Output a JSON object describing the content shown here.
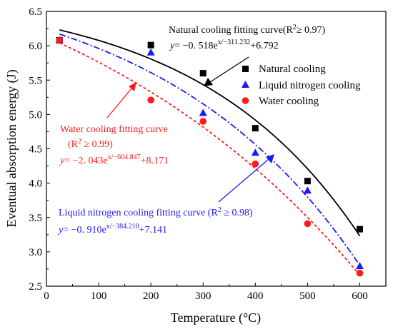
{
  "chart_data": {
    "type": "scatter",
    "xlabel": "Temperature (°C)",
    "ylabel": "Eventual absorption energy (J)",
    "xlim": [
      0,
      650
    ],
    "ylim": [
      2.5,
      6.5
    ],
    "xticks": [
      0,
      100,
      200,
      300,
      400,
      500,
      600
    ],
    "yticks": [
      2.5,
      3.0,
      3.5,
      4.0,
      4.5,
      5.0,
      5.5,
      6.0,
      6.5
    ],
    "xtick_labels": [
      "0",
      "100",
      "200",
      "300",
      "400",
      "500",
      "600"
    ],
    "ytick_labels": [
      "2.5",
      "3.0",
      "3.5",
      "4.0",
      "4.5",
      "5.0",
      "5.5",
      "6.0",
      "6.5"
    ],
    "legend_position": "top-right",
    "series": [
      {
        "name": "Natural cooling",
        "marker": "square",
        "color": "#000000",
        "x": [
          25,
          200,
          300,
          400,
          500,
          600
        ],
        "y": [
          6.08,
          6.01,
          5.6,
          4.8,
          4.03,
          3.33
        ]
      },
      {
        "name": "Liquid nitrogen cooling",
        "marker": "triangle",
        "color": "#1a1aff",
        "x": [
          25,
          200,
          300,
          400,
          500,
          600
        ],
        "y": [
          6.08,
          5.9,
          5.02,
          4.44,
          3.89,
          2.79
        ]
      },
      {
        "name": "Water cooling",
        "marker": "circle",
        "color": "#ff1a1a",
        "x": [
          25,
          200,
          300,
          400,
          500,
          600
        ],
        "y": [
          6.08,
          5.21,
          4.9,
          4.28,
          3.41,
          2.69
        ]
      }
    ],
    "fits": [
      {
        "series": "Natural cooling",
        "style": "solid",
        "color": "#000000",
        "a": -0.518,
        "t": 311.232,
        "c": 6.792,
        "label": "Natural cooling fitting curve(R",
        "r2": "≥ 0.97)",
        "eq_prefix": "−0. 518e",
        "eq_exp": "x/−311.232",
        "eq_suffix": "+6.792"
      },
      {
        "series": "Liquid nitrogen cooling",
        "style": "dash-dot",
        "color": "#1a1aff",
        "a": -0.91,
        "t": 384.21,
        "c": 7.141,
        "label": "Liquid nitrogen cooling fitting curve  (R",
        "r2": " ≥ 0.98)",
        "eq_prefix": "−0. 910e",
        "eq_exp": "x/−384.210",
        "eq_suffix": "+7.141"
      },
      {
        "series": "Water cooling",
        "style": "dashed",
        "color": "#ff1a1a",
        "a": -2.043,
        "t": 604.847,
        "c": 8.171,
        "label": "Water cooling fitting curve",
        "r2_line": "(R",
        "r2": " ≥ 0.99)",
        "eq_prefix": "−2. 043e",
        "eq_exp": "x/−604.847",
        "eq_suffix": "+8.171"
      }
    ]
  },
  "annotation_text": {
    "y_var": "y",
    "eq_sign": "= ",
    "r2_sup": "2"
  }
}
